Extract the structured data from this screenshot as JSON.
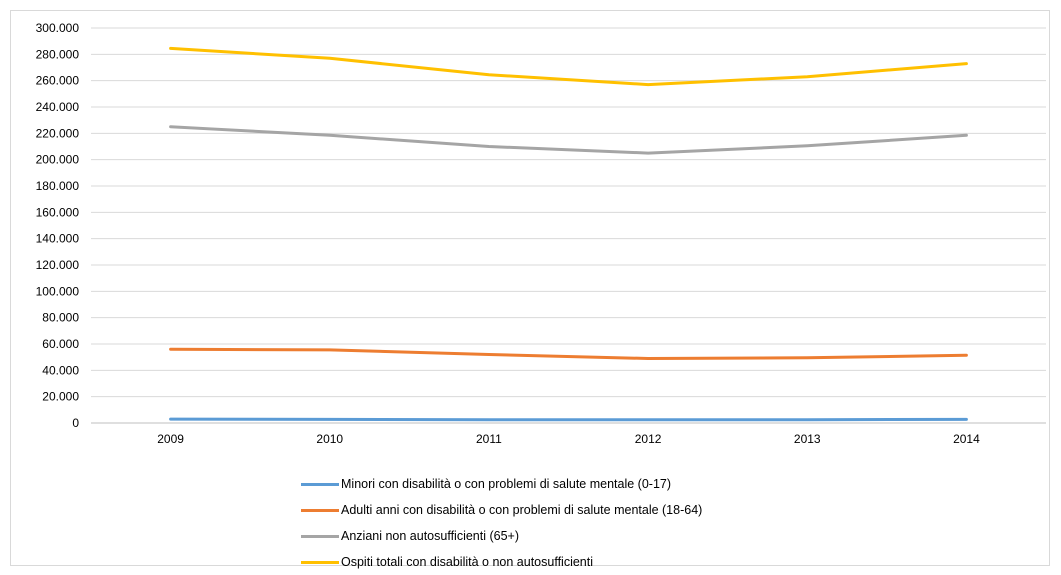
{
  "chart_data": {
    "type": "line",
    "categories": [
      "2009",
      "2010",
      "2011",
      "2012",
      "2013",
      "2014"
    ],
    "ylim": [
      0,
      300000
    ],
    "y_ticks": [
      "0",
      "20.000",
      "40.000",
      "60.000",
      "80.000",
      "100.000",
      "120.000",
      "140.000",
      "160.000",
      "180.000",
      "200.000",
      "220.000",
      "240.000",
      "260.000",
      "280.000",
      "300.000"
    ],
    "grid": "horizontal",
    "legend_position": "bottom",
    "series": [
      {
        "name": "Minori con disabilità o con problemi di salute mentale (0-17)",
        "color": "#5b9bd5",
        "values": [
          3000,
          2700,
          2500,
          2400,
          2500,
          2700
        ]
      },
      {
        "name": "Adulti anni con disabilità o con problemi di salute mentale (18-64)",
        "color": "#ed7d31",
        "values": [
          56000,
          55500,
          52000,
          49000,
          49500,
          51500
        ]
      },
      {
        "name": "Anziani non autosufficienti (65+)",
        "color": "#a5a5a5",
        "values": [
          225000,
          218500,
          210000,
          205000,
          210500,
          218500
        ]
      },
      {
        "name": "Ospiti totali con disabilità o non autosufficienti",
        "color": "#ffc000",
        "values": [
          284500,
          277000,
          264500,
          257000,
          263000,
          273000
        ]
      }
    ]
  }
}
